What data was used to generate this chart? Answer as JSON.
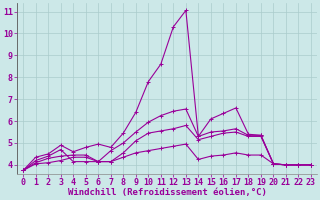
{
  "background_color": "#cce8e8",
  "grid_color": "#aacccc",
  "line_color": "#990099",
  "marker": "+",
  "markersize": 3,
  "linewidth": 0.8,
  "xlabel": "Windchill (Refroidissement éolien,°C)",
  "xlabel_fontsize": 6.5,
  "tick_fontsize": 6,
  "xlim": [
    -0.5,
    23.5
  ],
  "ylim": [
    3.6,
    11.4
  ],
  "yticks": [
    4,
    5,
    6,
    7,
    8,
    9,
    10,
    11
  ],
  "xticks": [
    0,
    1,
    2,
    3,
    4,
    5,
    6,
    7,
    8,
    9,
    10,
    11,
    12,
    13,
    14,
    15,
    16,
    17,
    18,
    19,
    20,
    21,
    22,
    23
  ],
  "series": [
    {
      "x": [
        0,
        1,
        2,
        3,
        4,
        5,
        6,
        7,
        8,
        9,
        10,
        11,
        12,
        13,
        14,
        15,
        16,
        17,
        18,
        19,
        20,
        21,
        22,
        23
      ],
      "y": [
        3.75,
        4.35,
        4.5,
        4.9,
        4.6,
        4.8,
        4.95,
        4.8,
        5.45,
        6.4,
        7.8,
        8.6,
        10.3,
        11.05,
        5.3,
        6.1,
        6.35,
        6.6,
        5.4,
        5.35,
        4.05,
        4.0,
        4.0,
        4.0
      ]
    },
    {
      "x": [
        0,
        1,
        2,
        3,
        4,
        5,
        6,
        7,
        8,
        9,
        10,
        11,
        12,
        13,
        14,
        15,
        16,
        17,
        18,
        19,
        20,
        21,
        22,
        23
      ],
      "y": [
        3.75,
        4.2,
        4.4,
        4.7,
        4.15,
        4.15,
        4.15,
        4.65,
        5.0,
        5.5,
        5.95,
        6.25,
        6.45,
        6.55,
        5.3,
        5.5,
        5.55,
        5.65,
        5.35,
        5.35,
        4.05,
        4.0,
        4.0,
        4.0
      ]
    },
    {
      "x": [
        0,
        1,
        2,
        3,
        4,
        5,
        6,
        7,
        8,
        9,
        10,
        11,
        12,
        13,
        14,
        15,
        16,
        17,
        18,
        19,
        20,
        21,
        22,
        23
      ],
      "y": [
        3.75,
        4.1,
        4.3,
        4.4,
        4.45,
        4.45,
        4.15,
        4.15,
        4.55,
        5.1,
        5.45,
        5.55,
        5.65,
        5.8,
        5.15,
        5.3,
        5.45,
        5.5,
        5.3,
        5.3,
        4.05,
        4.0,
        4.0,
        4.0
      ]
    },
    {
      "x": [
        0,
        1,
        2,
        3,
        4,
        5,
        6,
        7,
        8,
        9,
        10,
        11,
        12,
        13,
        14,
        15,
        16,
        17,
        18,
        19,
        20,
        21,
        22,
        23
      ],
      "y": [
        3.75,
        4.05,
        4.1,
        4.2,
        4.35,
        4.35,
        4.15,
        4.15,
        4.35,
        4.55,
        4.65,
        4.75,
        4.85,
        4.95,
        4.25,
        4.4,
        4.45,
        4.55,
        4.45,
        4.45,
        4.05,
        4.0,
        4.0,
        4.0
      ]
    }
  ]
}
